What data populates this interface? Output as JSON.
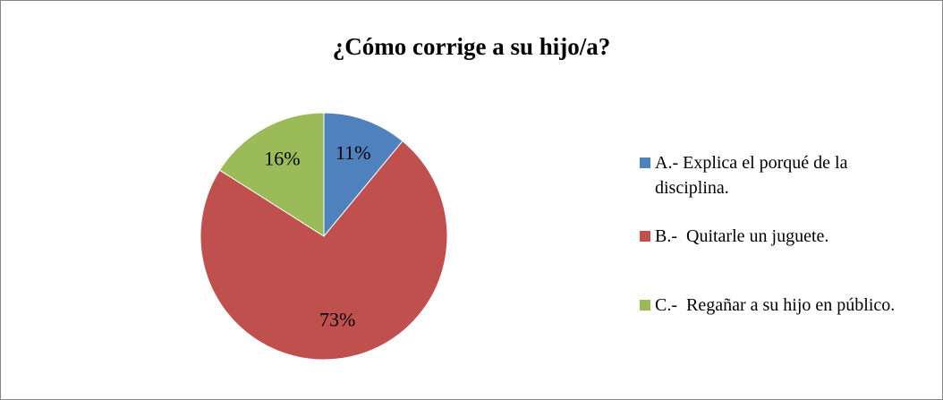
{
  "chart_data": {
    "type": "pie",
    "title": "¿Cómo corrige a su hijo/a?",
    "categories": [
      "A.- Explica el porqué de la disciplina.",
      "B.-  Quitarle un juguete.",
      "C.-  Regañar a su hijo en público."
    ],
    "values": [
      11,
      73,
      16
    ],
    "value_labels": [
      "11%",
      "73%",
      "16%"
    ],
    "colors": [
      "#4f81bd",
      "#c0504d",
      "#9bbb59"
    ],
    "legend": "right"
  }
}
